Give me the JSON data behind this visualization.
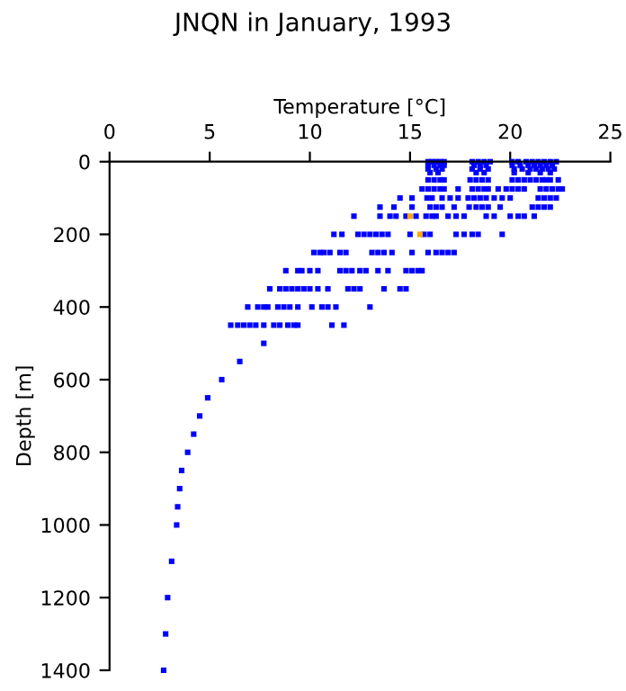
{
  "chart_data": {
    "type": "scatter",
    "title": "JNQN in January, 1993",
    "xlabel": "Temperature [°C]",
    "ylabel": "Depth [m]",
    "xlim": [
      0,
      25
    ],
    "xticks": [
      0,
      5,
      10,
      15,
      20,
      25
    ],
    "ylim": [
      1400,
      0
    ],
    "yticks": [
      0,
      200,
      400,
      600,
      800,
      1000,
      1200,
      1400
    ],
    "marker": "square",
    "grid": false,
    "series": [
      {
        "color": "#0000ff",
        "x": [
          15.9,
          16.1,
          16.3,
          16.5,
          16.7,
          18.1,
          18.4,
          18.7,
          19.0,
          20.1,
          20.4,
          20.8,
          21.1,
          21.4,
          21.7,
          22.0,
          22.3,
          15.9,
          16.2,
          16.5,
          16.7,
          18.2,
          18.5,
          18.8,
          20.1,
          20.5,
          20.9,
          21.2,
          21.5,
          21.8,
          22.1,
          15.9,
          16.3,
          16.6,
          18.1,
          18.5,
          18.9,
          20.2,
          20.6,
          21.0,
          21.3,
          21.6,
          21.9,
          22.2,
          16.0,
          16.4,
          18.3,
          18.7,
          20.2,
          20.9,
          21.5,
          22.0,
          15.9,
          16.2,
          16.5,
          16.7,
          18.0,
          18.3,
          18.6,
          18.9,
          20.1,
          20.4,
          20.7,
          21.0,
          21.3,
          21.6,
          21.8,
          22.0,
          22.4,
          15.6,
          15.9,
          16.2,
          16.5,
          16.7,
          17.4,
          18.1,
          18.4,
          18.7,
          18.9,
          19.4,
          19.8,
          20.1,
          20.4,
          20.7,
          21.5,
          21.8,
          22.1,
          22.4,
          22.6,
          14.5,
          15.1,
          15.85,
          16.1,
          16.6,
          17.0,
          17.4,
          17.9,
          18.2,
          18.5,
          18.8,
          19.2,
          19.6,
          20.0,
          21.4,
          21.7,
          22.0,
          22.3,
          13.5,
          14.2,
          15.1,
          16.0,
          16.3,
          16.6,
          17.2,
          17.95,
          18.3,
          18.6,
          18.9,
          19.5,
          21.1,
          21.4,
          21.7,
          22.0,
          12.2,
          13.5,
          14.0,
          14.3,
          14.8,
          15.3,
          15.8,
          16.1,
          16.3,
          16.9,
          17.3,
          17.7,
          18.8,
          19.2,
          20.0,
          20.4,
          20.7,
          21.2,
          11.2,
          11.6,
          12.4,
          12.7,
          13.0,
          13.3,
          13.6,
          13.9,
          15.0,
          15.7,
          16.0,
          17.3,
          17.7,
          18.1,
          18.4,
          19.6,
          10.2,
          10.5,
          10.7,
          11.0,
          11.5,
          11.8,
          13.1,
          13.4,
          13.7,
          14.1,
          15.1,
          15.9,
          16.3,
          16.6,
          16.9,
          17.2,
          8.8,
          9.4,
          9.6,
          10.0,
          10.4,
          11.5,
          11.8,
          12.1,
          12.5,
          12.8,
          13.4,
          13.9,
          14.8,
          15.1,
          15.4,
          15.6,
          8.0,
          8.5,
          8.8,
          9.1,
          9.4,
          9.7,
          10.0,
          10.4,
          10.9,
          11.9,
          12.2,
          12.5,
          13.7,
          14.5,
          14.8,
          6.9,
          7.4,
          7.7,
          7.9,
          8.4,
          8.7,
          9.0,
          9.4,
          10.1,
          10.6,
          10.9,
          11.3,
          13.0,
          6.05,
          6.4,
          6.7,
          7.0,
          7.3,
          7.7,
          8.2,
          8.5,
          8.9,
          9.2,
          9.4,
          11.1,
          11.7,
          7.7,
          6.5,
          5.6,
          4.9,
          4.5,
          4.2,
          3.9,
          3.6,
          3.5,
          3.4,
          3.35,
          3.1,
          2.9,
          2.8,
          2.7
        ],
        "values": [
          0,
          0,
          0,
          0,
          0,
          0,
          0,
          0,
          0,
          0,
          0,
          0,
          0,
          0,
          0,
          0,
          0,
          10,
          10,
          10,
          10,
          10,
          10,
          10,
          10,
          10,
          10,
          10,
          10,
          10,
          10,
          20,
          20,
          20,
          20,
          20,
          20,
          20,
          20,
          20,
          20,
          20,
          20,
          20,
          30,
          30,
          30,
          30,
          30,
          30,
          30,
          30,
          50,
          50,
          50,
          50,
          50,
          50,
          50,
          50,
          50,
          50,
          50,
          50,
          50,
          50,
          50,
          50,
          50,
          75,
          75,
          75,
          75,
          75,
          75,
          75,
          75,
          75,
          75,
          75,
          75,
          75,
          75,
          75,
          75,
          75,
          75,
          75,
          75,
          100,
          100,
          100,
          100,
          100,
          100,
          100,
          100,
          100,
          100,
          100,
          100,
          100,
          100,
          100,
          100,
          100,
          100,
          125,
          125,
          125,
          125,
          125,
          125,
          125,
          125,
          125,
          125,
          125,
          125,
          125,
          125,
          125,
          125,
          150,
          150,
          150,
          150,
          150,
          150,
          150,
          150,
          150,
          150,
          150,
          150,
          150,
          150,
          150,
          150,
          150,
          150,
          200,
          200,
          200,
          200,
          200,
          200,
          200,
          200,
          200,
          200,
          200,
          200,
          200,
          200,
          200,
          200,
          250,
          250,
          250,
          250,
          250,
          250,
          250,
          250,
          250,
          250,
          250,
          250,
          250,
          250,
          250,
          250,
          300,
          300,
          300,
          300,
          300,
          300,
          300,
          300,
          300,
          300,
          300,
          300,
          300,
          300,
          300,
          300,
          350,
          350,
          350,
          350,
          350,
          350,
          350,
          350,
          350,
          350,
          350,
          350,
          350,
          350,
          350,
          400,
          400,
          400,
          400,
          400,
          400,
          400,
          400,
          400,
          400,
          400,
          400,
          400,
          450,
          450,
          450,
          450,
          450,
          450,
          450,
          450,
          450,
          450,
          450,
          450,
          450,
          500,
          550,
          600,
          650,
          700,
          750,
          800,
          850,
          900,
          950,
          1000,
          1100,
          1200,
          1300,
          1400
        ]
      },
      {
        "color": "#ffa500",
        "x": [
          15.0,
          15.5
        ],
        "values": [
          150,
          200
        ]
      }
    ]
  }
}
